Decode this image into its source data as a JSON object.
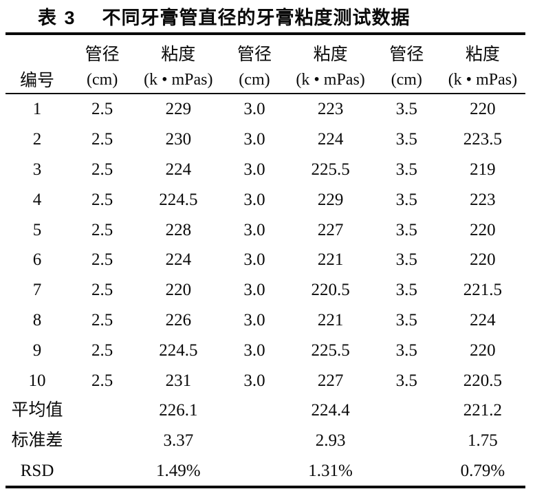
{
  "caption": {
    "table_number": "表 3",
    "title": "不同牙膏管直径的牙膏粘度测试数据"
  },
  "table": {
    "id_header": "编号",
    "columns": [
      {
        "name": "管径",
        "unit": "(cm)"
      },
      {
        "name": "粘度",
        "unit": "(k • mPas)"
      },
      {
        "name": "管径",
        "unit": "(cm)"
      },
      {
        "name": "粘度",
        "unit": "(k • mPas)"
      },
      {
        "name": "管径",
        "unit": "(cm)"
      },
      {
        "name": "粘度",
        "unit": "(k • mPas)"
      }
    ],
    "rows": [
      {
        "label": "1",
        "cells": [
          "2.5",
          "229",
          "3.0",
          "223",
          "3.5",
          "220"
        ]
      },
      {
        "label": "2",
        "cells": [
          "2.5",
          "230",
          "3.0",
          "224",
          "3.5",
          "223.5"
        ]
      },
      {
        "label": "3",
        "cells": [
          "2.5",
          "224",
          "3.0",
          "225.5",
          "3.5",
          "219"
        ]
      },
      {
        "label": "4",
        "cells": [
          "2.5",
          "224.5",
          "3.0",
          "229",
          "3.5",
          "223"
        ]
      },
      {
        "label": "5",
        "cells": [
          "2.5",
          "228",
          "3.0",
          "227",
          "3.5",
          "220"
        ]
      },
      {
        "label": "6",
        "cells": [
          "2.5",
          "224",
          "3.0",
          "221",
          "3.5",
          "220"
        ]
      },
      {
        "label": "7",
        "cells": [
          "2.5",
          "220",
          "3.0",
          "220.5",
          "3.5",
          "221.5"
        ]
      },
      {
        "label": "8",
        "cells": [
          "2.5",
          "226",
          "3.0",
          "221",
          "3.5",
          "224"
        ]
      },
      {
        "label": "9",
        "cells": [
          "2.5",
          "224.5",
          "3.0",
          "225.5",
          "3.5",
          "220"
        ]
      },
      {
        "label": "10",
        "cells": [
          "2.5",
          "231",
          "3.0",
          "227",
          "3.5",
          "220.5"
        ]
      },
      {
        "label": "平均值",
        "cells": [
          "",
          "226.1",
          "",
          "224.4",
          "",
          "221.2"
        ]
      },
      {
        "label": "标准差",
        "cells": [
          "",
          "3.37",
          "",
          "2.93",
          "",
          "1.75"
        ]
      },
      {
        "label": "RSD",
        "cells": [
          "",
          "1.49%",
          "",
          "1.31%",
          "",
          "0.79%"
        ]
      }
    ]
  },
  "chart_data": {
    "type": "table",
    "title": "表3 不同牙膏管直径的牙膏粘度测试数据",
    "categories": [
      1,
      2,
      3,
      4,
      5,
      6,
      7,
      8,
      9,
      10
    ],
    "series": [
      {
        "name": "管径 2.5 cm 粘度 (k•mPas)",
        "values": [
          229,
          230,
          224,
          224.5,
          228,
          224,
          220,
          226,
          224.5,
          231
        ],
        "mean": 226.1,
        "std": 3.37,
        "rsd": "1.49%"
      },
      {
        "name": "管径 3.0 cm 粘度 (k•mPas)",
        "values": [
          223,
          224,
          225.5,
          229,
          227,
          221,
          220.5,
          221,
          225.5,
          227
        ],
        "mean": 224.4,
        "std": 2.93,
        "rsd": "1.31%"
      },
      {
        "name": "管径 3.5 cm 粘度 (k•mPas)",
        "values": [
          220,
          223.5,
          219,
          223,
          220,
          220,
          221.5,
          224,
          220,
          220.5
        ],
        "mean": 221.2,
        "std": 1.75,
        "rsd": "0.79%"
      }
    ]
  }
}
